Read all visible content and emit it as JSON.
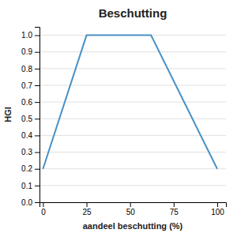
{
  "chart_data": {
    "type": "line",
    "title": "Beschutting",
    "xlabel": "aandeel beschutting (%)",
    "ylabel": "HGI",
    "x": [
      0,
      25,
      62,
      100
    ],
    "values": [
      0.2,
      1.0,
      1.0,
      0.2
    ],
    "color": "#4a90c4",
    "xlim": [
      -2,
      105
    ],
    "ylim": [
      0.0,
      1.05
    ],
    "xticks": [
      0,
      25,
      50,
      75,
      100
    ],
    "yticks": [
      {
        "value": 0.0,
        "label": "0.0"
      },
      0.1,
      0.2,
      0.3,
      0.4,
      0.5,
      0.6,
      0.7,
      0.8,
      0.9,
      {
        "value": 1.0,
        "label": "1.0"
      }
    ],
    "grid": "y"
  }
}
